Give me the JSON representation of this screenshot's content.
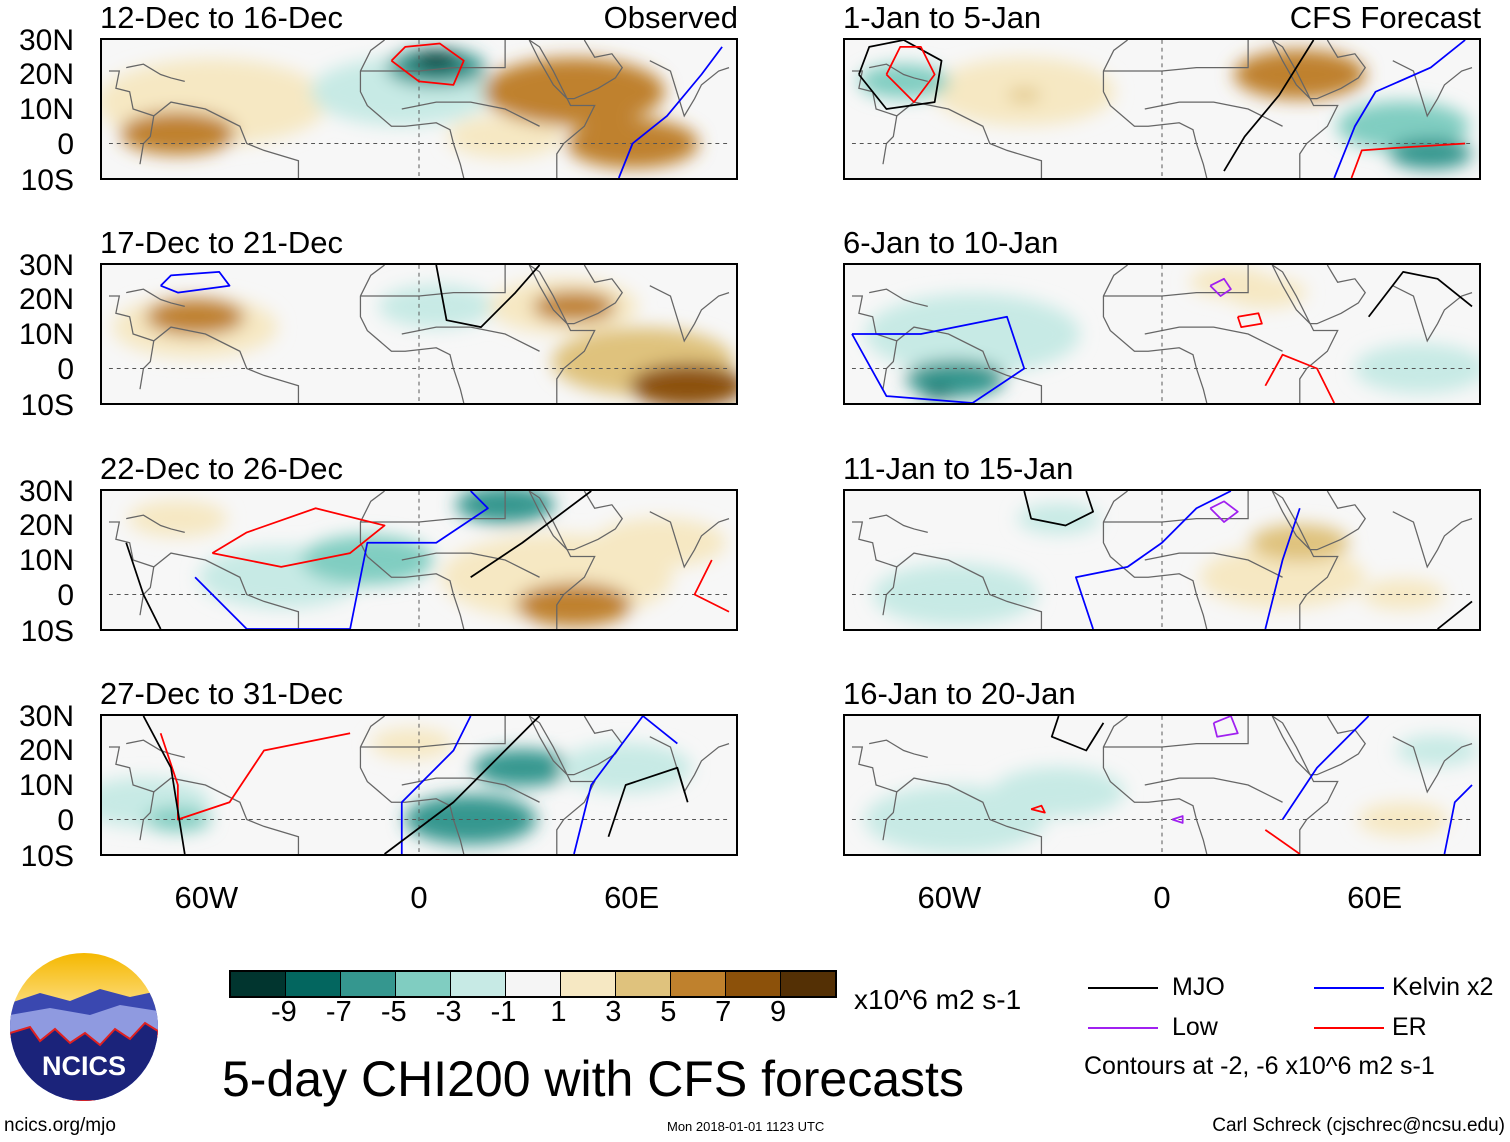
{
  "colorbar": {
    "colors": [
      "#01352f",
      "#03665f",
      "#35978f",
      "#80cdc1",
      "#c7eae5",
      "#f5f5f5",
      "#f6e8c3",
      "#dfc27d",
      "#bf812d",
      "#8c510a",
      "#543005"
    ],
    "edges": [
      -9,
      -7,
      -5,
      -3,
      -1,
      1,
      3,
      5,
      7,
      9
    ],
    "labels": [
      "-9",
      "-7",
      "-5",
      "-3",
      "-1",
      "1",
      "3",
      "5",
      "7",
      "9"
    ],
    "units": "x10^6 m2 s-1"
  },
  "lat_labels": [
    "30N",
    "20N",
    "10N",
    "0",
    "10S"
  ],
  "lon_labels": [
    "60W",
    "0",
    "60E"
  ],
  "legend": {
    "items": [
      {
        "label": "MJO",
        "color": "#000000"
      },
      {
        "label": "Kelvin x2",
        "color": "#0000ff"
      },
      {
        "label": "Low",
        "color": "#a020f0"
      },
      {
        "label": "ER",
        "color": "#ff0000"
      }
    ],
    "contour_note": "Contours at -2, -6 x10^6 m2 s-1"
  },
  "title": "5-day CHI200 with CFS forecasts",
  "logo_text": "NCICS",
  "footer": {
    "left": "ncics.org/mjo",
    "center": "Mon 2018-01-01 1123 UTC",
    "right": "Carl Schreck (cjschrec@ncsu.edu)"
  },
  "panels": [
    {
      "title": "12-Dec to 16-Dec",
      "label": "Observed",
      "blobs": [
        [
          -60,
          12,
          2,
          28
        ],
        [
          -70,
          3,
          5.5,
          14
        ],
        [
          -5,
          15,
          -2,
          22
        ],
        [
          5,
          22,
          -6,
          12
        ],
        [
          5,
          24,
          -9,
          6
        ],
        [
          25,
          2,
          3,
          14
        ],
        [
          45,
          15,
          6,
          22
        ],
        [
          62,
          0,
          7,
          16
        ]
      ],
      "contours": [
        {
          "t": "ER",
          "p": [
            [
              -8,
              24
            ],
            [
              -4,
              28
            ],
            [
              6,
              29
            ],
            [
              13,
              24
            ],
            [
              10,
              17
            ],
            [
              0,
              18
            ],
            [
              -8,
              24
            ]
          ]
        },
        {
          "t": "Kelvin",
          "p": [
            [
              58,
              -10
            ],
            [
              62,
              0
            ],
            [
              72,
              8
            ],
            [
              82,
              20
            ],
            [
              88,
              28
            ]
          ]
        }
      ]
    },
    {
      "title": "1-Jan to 5-Jan",
      "label": "CFS Forecast",
      "blobs": [
        [
          -40,
          15,
          2,
          22
        ],
        [
          -40,
          14,
          5,
          4
        ],
        [
          40,
          20,
          6,
          16
        ],
        [
          -75,
          18,
          -4,
          11
        ],
        [
          70,
          5,
          -3,
          16
        ],
        [
          78,
          -3,
          -5,
          10
        ]
      ],
      "contours": [
        {
          "t": "MJO",
          "p": [
            [
              -88,
              20
            ],
            [
              -85,
              28
            ],
            [
              -75,
              30
            ],
            [
              -64,
              24
            ],
            [
              -66,
              12
            ],
            [
              -80,
              10
            ],
            [
              -88,
              20
            ]
          ]
        },
        {
          "t": "ER",
          "p": [
            [
              -80,
              20
            ],
            [
              -76,
              28
            ],
            [
              -70,
              28
            ],
            [
              -66,
              20
            ],
            [
              -72,
              12
            ],
            [
              -80,
              20
            ]
          ]
        },
        {
          "t": "MJO",
          "p": [
            [
              18,
              -8
            ],
            [
              24,
              2
            ],
            [
              34,
              14
            ],
            [
              44,
              30
            ]
          ]
        },
        {
          "t": "Kelvin",
          "p": [
            [
              50,
              -10
            ],
            [
              56,
              5
            ],
            [
              62,
              15
            ],
            [
              78,
              22
            ],
            [
              88,
              30
            ]
          ]
        },
        {
          "t": "ER",
          "p": [
            [
              55,
              -10
            ],
            [
              58,
              -2
            ],
            [
              72,
              -1
            ],
            [
              88,
              0
            ]
          ]
        }
      ]
    },
    {
      "title": "17-Dec to 21-Dec",
      "label": "",
      "blobs": [
        [
          -65,
          12,
          3,
          20
        ],
        [
          -65,
          15,
          6,
          12
        ],
        [
          5,
          18,
          -2,
          14
        ],
        [
          42,
          18,
          3,
          18
        ],
        [
          45,
          18,
          6,
          10
        ],
        [
          65,
          2,
          5,
          22
        ],
        [
          78,
          -5,
          9,
          14
        ]
      ],
      "contours": [
        {
          "t": "Kelvin",
          "p": [
            [
              -75,
              24
            ],
            [
              -72,
              27
            ],
            [
              -58,
              28
            ],
            [
              -55,
              24
            ],
            [
              -70,
              22
            ],
            [
              -75,
              24
            ]
          ]
        },
        {
          "t": "MJO",
          "p": [
            [
              5,
              30
            ],
            [
              8,
              14
            ],
            [
              18,
              12
            ],
            [
              28,
              22
            ],
            [
              35,
              30
            ]
          ]
        }
      ]
    },
    {
      "title": "6-Jan to 10-Jan",
      "label": "",
      "blobs": [
        [
          -55,
          10,
          -2,
          26
        ],
        [
          -60,
          -3,
          -5,
          12
        ],
        [
          -65,
          -7,
          -8,
          4
        ],
        [
          30,
          22,
          3,
          10
        ],
        [
          75,
          0,
          -2,
          16
        ],
        [
          20,
          25,
          1.5,
          10
        ]
      ],
      "contours": [
        {
          "t": "Kelvin",
          "p": [
            [
              -90,
              10
            ],
            [
              -80,
              -8
            ],
            [
              -55,
              -10
            ],
            [
              -40,
              0
            ],
            [
              -45,
              15
            ],
            [
              -70,
              10
            ],
            [
              -90,
              10
            ]
          ]
        },
        {
          "t": "Low",
          "p": [
            [
              14,
              24
            ],
            [
              18,
              26
            ],
            [
              20,
              23
            ],
            [
              17,
              21
            ],
            [
              14,
              24
            ]
          ]
        },
        {
          "t": "ER",
          "p": [
            [
              22,
              15
            ],
            [
              28,
              16
            ],
            [
              29,
              13
            ],
            [
              23,
              12
            ],
            [
              22,
              15
            ]
          ]
        },
        {
          "t": "MJO",
          "p": [
            [
              60,
              15
            ],
            [
              70,
              28
            ],
            [
              80,
              26
            ],
            [
              90,
              18
            ]
          ]
        },
        {
          "t": "ER",
          "p": [
            [
              30,
              -5
            ],
            [
              35,
              4
            ],
            [
              45,
              0
            ],
            [
              50,
              -10
            ]
          ]
        }
      ]
    },
    {
      "title": "22-Dec to 26-Dec",
      "label": "",
      "blobs": [
        [
          -70,
          22,
          2,
          12
        ],
        [
          -40,
          5,
          -2,
          20
        ],
        [
          -15,
          10,
          -4,
          16
        ],
        [
          25,
          26,
          -6,
          12
        ],
        [
          40,
          5,
          3,
          28
        ],
        [
          45,
          -3,
          6,
          14
        ],
        [
          70,
          15,
          2,
          16
        ]
      ],
      "contours": [
        {
          "t": "ER",
          "p": [
            [
              -60,
              12
            ],
            [
              -50,
              18
            ],
            [
              -30,
              25
            ],
            [
              -10,
              20
            ],
            [
              -20,
              12
            ],
            [
              -40,
              8
            ],
            [
              -60,
              12
            ]
          ]
        },
        {
          "t": "Kelvin",
          "p": [
            [
              -65,
              5
            ],
            [
              -50,
              -10
            ],
            [
              -20,
              -10
            ],
            [
              -15,
              15
            ],
            [
              5,
              15
            ],
            [
              20,
              25
            ],
            [
              15,
              30
            ]
          ]
        },
        {
          "t": "MJO",
          "p": [
            [
              -85,
              15
            ],
            [
              -80,
              0
            ],
            [
              -75,
              -10
            ]
          ]
        },
        {
          "t": "MJO",
          "p": [
            [
              15,
              5
            ],
            [
              30,
              15
            ],
            [
              50,
              30
            ]
          ]
        },
        {
          "t": "ER",
          "p": [
            [
              85,
              10
            ],
            [
              80,
              0
            ],
            [
              90,
              -5
            ]
          ]
        }
      ]
    },
    {
      "title": "11-Jan to 15-Jan",
      "label": "",
      "blobs": [
        [
          -30,
          22,
          -1.5,
          10
        ],
        [
          35,
          5,
          2,
          20
        ],
        [
          40,
          15,
          5,
          12
        ],
        [
          -60,
          0,
          -1,
          20
        ],
        [
          70,
          0,
          2,
          10
        ]
      ],
      "contours": [
        {
          "t": "MJO",
          "p": [
            [
              -40,
              30
            ],
            [
              -38,
              22
            ],
            [
              -28,
              20
            ],
            [
              -20,
              24
            ],
            [
              -22,
              30
            ]
          ]
        },
        {
          "t": "Kelvin",
          "p": [
            [
              -20,
              -10
            ],
            [
              -25,
              5
            ],
            [
              -10,
              8
            ],
            [
              0,
              15
            ],
            [
              10,
              25
            ],
            [
              20,
              30
            ]
          ]
        },
        {
          "t": "Low",
          "p": [
            [
              14,
              25
            ],
            [
              18,
              27
            ],
            [
              22,
              24
            ],
            [
              18,
              21
            ],
            [
              14,
              25
            ]
          ]
        },
        {
          "t": "Kelvin",
          "p": [
            [
              30,
              -10
            ],
            [
              35,
              10
            ],
            [
              40,
              25
            ]
          ]
        },
        {
          "t": "MJO",
          "p": [
            [
              80,
              -10
            ],
            [
              90,
              -2
            ]
          ]
        }
      ]
    },
    {
      "title": "27-Dec to 31-Dec",
      "label": "",
      "blobs": [
        [
          -80,
          5,
          -2,
          16
        ],
        [
          -70,
          0,
          -4,
          8
        ],
        [
          -2,
          22,
          3,
          10
        ],
        [
          15,
          0,
          -6,
          16
        ],
        [
          30,
          15,
          -5,
          12
        ],
        [
          60,
          15,
          -2,
          16
        ]
      ],
      "contours": [
        {
          "t": "ER",
          "p": [
            [
              -75,
              25
            ],
            [
              -70,
              10
            ],
            [
              -70,
              0
            ],
            [
              -55,
              5
            ],
            [
              -45,
              20
            ],
            [
              -20,
              25
            ]
          ]
        },
        {
          "t": "MJO",
          "p": [
            [
              -80,
              30
            ],
            [
              -72,
              15
            ],
            [
              -68,
              -10
            ]
          ]
        },
        {
          "t": "Kelvin",
          "p": [
            [
              -5,
              -10
            ],
            [
              -5,
              5
            ],
            [
              10,
              20
            ],
            [
              15,
              30
            ]
          ]
        },
        {
          "t": "MJO",
          "p": [
            [
              -10,
              -10
            ],
            [
              10,
              5
            ],
            [
              25,
              20
            ],
            [
              35,
              30
            ]
          ]
        },
        {
          "t": "MJO",
          "p": [
            [
              55,
              -5
            ],
            [
              60,
              10
            ],
            [
              75,
              15
            ],
            [
              78,
              5
            ]
          ]
        },
        {
          "t": "Kelvin",
          "p": [
            [
              45,
              -10
            ],
            [
              50,
              10
            ],
            [
              65,
              30
            ],
            [
              75,
              22
            ]
          ]
        }
      ]
    },
    {
      "title": "16-Jan to 20-Jan",
      "label": "",
      "blobs": [
        [
          -60,
          0,
          -2,
          22
        ],
        [
          -30,
          8,
          -1.5,
          16
        ],
        [
          70,
          0,
          2,
          11
        ],
        [
          80,
          20,
          -1.5,
          10
        ]
      ],
      "contours": [
        {
          "t": "MJO",
          "p": [
            [
              -30,
              30
            ],
            [
              -32,
              24
            ],
            [
              -22,
              20
            ],
            [
              -17,
              28
            ]
          ]
        },
        {
          "t": "Low",
          "p": [
            [
              15,
              28
            ],
            [
              20,
              30
            ],
            [
              22,
              25
            ],
            [
              16,
              24
            ],
            [
              15,
              28
            ]
          ]
        },
        {
          "t": "ER",
          "p": [
            [
              -38,
              3
            ],
            [
              -35,
              4
            ],
            [
              -34,
              2
            ],
            [
              -38,
              3
            ]
          ]
        },
        {
          "t": "Low",
          "p": [
            [
              3,
              0
            ],
            [
              6,
              1
            ],
            [
              6,
              -1
            ],
            [
              3,
              0
            ]
          ]
        },
        {
          "t": "Kelvin",
          "p": [
            [
              35,
              0
            ],
            [
              45,
              15
            ],
            [
              60,
              30
            ]
          ]
        },
        {
          "t": "ER",
          "p": [
            [
              30,
              -3
            ],
            [
              40,
              -10
            ]
          ]
        },
        {
          "t": "Kelvin",
          "p": [
            [
              82,
              -10
            ],
            [
              85,
              5
            ],
            [
              90,
              10
            ]
          ]
        }
      ]
    }
  ]
}
